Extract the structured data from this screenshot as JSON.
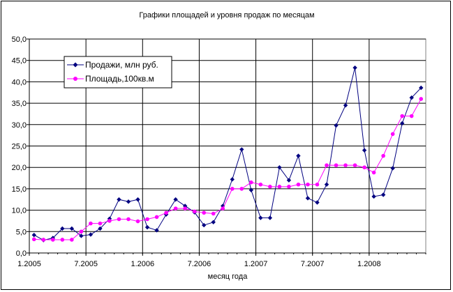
{
  "chart_data": {
    "type": "line",
    "title": "Графики площадей и уровня продаж по месяцам",
    "xlabel": "месяц года",
    "ylabel": "",
    "ylim": [
      0,
      50
    ],
    "y_ticks": [
      "0,0",
      "5,0",
      "10,0",
      "15,0",
      "20,0",
      "25,0",
      "30,0",
      "35,0",
      "40,0",
      "45,0",
      "50,0"
    ],
    "y_tick_values": [
      0,
      5,
      10,
      15,
      20,
      25,
      30,
      35,
      40,
      45,
      50
    ],
    "x_tick_labels": [
      {
        "index": 0,
        "label": "1.2005"
      },
      {
        "index": 6,
        "label": "7.2005"
      },
      {
        "index": 12,
        "label": "1.2006"
      },
      {
        "index": 18,
        "label": "7.2006"
      },
      {
        "index": 24,
        "label": "1.2007"
      },
      {
        "index": 30,
        "label": "7.2007"
      },
      {
        "index": 36,
        "label": "1.2008"
      }
    ],
    "grid": "horizontal and vertical",
    "legend_position": "top-left",
    "series": [
      {
        "name": "Продажи, млн руб.",
        "color": "#000080",
        "marker": "diamond",
        "values": [
          4.2,
          3.0,
          3.5,
          5.7,
          5.7,
          4.0,
          4.3,
          5.7,
          8.0,
          12.5,
          12.0,
          12.5,
          6.0,
          5.3,
          9.0,
          12.5,
          11.0,
          9.5,
          6.5,
          7.2,
          11.0,
          17.2,
          24.2,
          14.7,
          8.2,
          8.2,
          20.0,
          17.0,
          22.7,
          12.8,
          11.8,
          16.0,
          29.8,
          34.5,
          43.3,
          24.0,
          13.2,
          13.6,
          19.8,
          30.3,
          36.3,
          38.6
        ]
      },
      {
        "name": "Площадь,100кв.м",
        "color": "#ff00ff",
        "marker": "circle",
        "values": [
          3.2,
          3.1,
          3.1,
          3.1,
          3.1,
          5.0,
          6.9,
          6.9,
          7.5,
          7.9,
          7.9,
          7.4,
          7.9,
          8.4,
          9.4,
          10.4,
          10.4,
          9.7,
          9.4,
          9.2,
          10.4,
          15.0,
          15.0,
          16.5,
          16.0,
          15.5,
          15.5,
          15.5,
          16.0,
          16.0,
          16.0,
          20.5,
          20.5,
          20.5,
          20.5,
          20.0,
          18.8,
          22.7,
          27.8,
          32.0,
          32.0,
          36.0
        ]
      }
    ]
  }
}
